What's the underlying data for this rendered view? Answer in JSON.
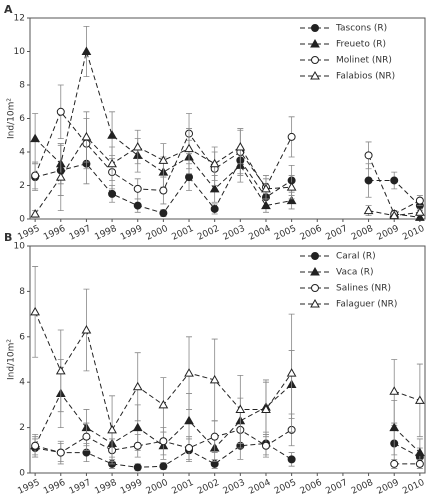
{
  "chart_data": [
    {
      "type": "line",
      "label": "A",
      "ylabel": "Ind/10m²",
      "linestyle": "dashed",
      "legend": "upper right",
      "x": [
        1995,
        1996,
        1997,
        1998,
        1999,
        2000,
        2001,
        2002,
        2003,
        2004,
        2005,
        2006,
        2007,
        2008,
        2009,
        2010
      ],
      "xlim": [
        1994.8,
        2010.2
      ],
      "xticks": [
        1995,
        1996,
        1997,
        1998,
        1999,
        2000,
        2001,
        2002,
        2003,
        2004,
        2005,
        2006,
        2007,
        2008,
        2009,
        2010
      ],
      "ylim": [
        0,
        12
      ],
      "yticks": [
        0,
        2,
        4,
        6,
        8,
        10,
        12
      ],
      "series": [
        {
          "name": "Tascons (R)",
          "color": "#222222",
          "marker": "circle-filled",
          "values": [
            2.5,
            2.9,
            3.3,
            1.5,
            0.8,
            0.35,
            2.5,
            0.6,
            3.5,
            1.3,
            2.3,
            null,
            null,
            2.3,
            2.3,
            0.8
          ],
          "errors": [
            0.8,
            1.5,
            1.2,
            0.5,
            0.4,
            0.2,
            0.8,
            0.3,
            0.8,
            0.5,
            0.9,
            null,
            null,
            1.0,
            0.5,
            0.3
          ]
        },
        {
          "name": "Freueto (R)",
          "color": "#222222",
          "marker": "triangle-filled",
          "values": [
            4.8,
            3.3,
            10,
            5,
            3.8,
            2.8,
            3.7,
            1.8,
            3.2,
            0.8,
            1.1,
            null,
            null,
            null,
            0.3,
            0.1
          ],
          "errors": [
            1.5,
            1.2,
            1.5,
            1.4,
            1.0,
            0.9,
            1.0,
            0.8,
            1.0,
            0.4,
            0.5,
            null,
            null,
            null,
            0.2,
            0.1
          ]
        },
        {
          "name": "Molinet (NR)",
          "color": "#222222",
          "marker": "circle-open",
          "values": [
            2.6,
            6.4,
            4.5,
            2.8,
            1.8,
            1.7,
            5.1,
            3.0,
            4.0,
            1.9,
            4.9,
            null,
            null,
            3.8,
            0.3,
            1.1
          ],
          "errors": [
            0.8,
            1.6,
            1.5,
            1.0,
            0.6,
            0.8,
            1.2,
            1.0,
            1.4,
            0.7,
            1.2,
            null,
            null,
            0.8,
            0.2,
            0.3
          ]
        },
        {
          "name": "Falabios (NR)",
          "color": "#222222",
          "marker": "triangle-open",
          "values": [
            0.3,
            2.5,
            4.9,
            3.3,
            4.3,
            3.5,
            4.2,
            3.3,
            4.3,
            1.8,
            1.9,
            null,
            null,
            0.5,
            0.2,
            0.4
          ],
          "errors": [
            0.2,
            2.0,
            1.5,
            1.0,
            1.0,
            1.0,
            1.2,
            1.0,
            1.0,
            0.6,
            0.7,
            null,
            null,
            0.3,
            0.1,
            0.2
          ]
        }
      ]
    },
    {
      "type": "line",
      "label": "B",
      "ylabel": "Ind/10m²",
      "linestyle": "dashed",
      "legend": "upper right",
      "x": [
        1995,
        1996,
        1997,
        1998,
        1999,
        2000,
        2001,
        2002,
        2003,
        2004,
        2005,
        2006,
        2007,
        2008,
        2009,
        2010
      ],
      "xlim": [
        1994.8,
        2010.2
      ],
      "xticks": [
        1995,
        1996,
        1997,
        1998,
        1999,
        2000,
        2001,
        2002,
        2003,
        2004,
        2005,
        2006,
        2007,
        2008,
        2009,
        2010
      ],
      "ylim": [
        0,
        10
      ],
      "yticks": [
        0,
        2,
        4,
        6,
        8,
        10
      ],
      "series": [
        {
          "name": "Caral (R)",
          "color": "#222222",
          "marker": "circle-filled",
          "values": [
            1.1,
            0.9,
            0.9,
            0.4,
            0.25,
            0.3,
            1.0,
            0.4,
            1.2,
            1.3,
            0.6,
            null,
            null,
            null,
            1.3,
            0.7
          ],
          "errors": [
            0.4,
            0.5,
            0.4,
            0.2,
            0.15,
            0.15,
            0.5,
            0.2,
            0.6,
            0.5,
            0.3,
            null,
            null,
            null,
            0.8,
            0.4
          ]
        },
        {
          "name": "Vaca (R)",
          "color": "#222222",
          "marker": "triangle-filled",
          "values": [
            1.2,
            3.5,
            2.0,
            1.3,
            2.0,
            1.2,
            2.3,
            1.1,
            2.3,
            2.9,
            3.9,
            null,
            null,
            null,
            2.0,
            0.9
          ],
          "errors": [
            0.5,
            1.5,
            0.8,
            0.6,
            1.0,
            0.6,
            1.2,
            0.6,
            1.0,
            1.2,
            1.5,
            null,
            null,
            null,
            1.2,
            0.6
          ]
        },
        {
          "name": "Salines (NR)",
          "color": "#222222",
          "marker": "circle-open",
          "values": [
            1.2,
            0.9,
            1.6,
            1.0,
            1.2,
            1.4,
            1.1,
            1.6,
            1.9,
            1.2,
            1.9,
            null,
            null,
            null,
            0.4,
            0.4
          ],
          "errors": [
            0.4,
            0.4,
            0.6,
            0.5,
            0.5,
            0.6,
            0.5,
            0.7,
            0.8,
            0.5,
            0.7,
            null,
            null,
            null,
            0.2,
            0.2
          ]
        },
        {
          "name": "Falaguer (NR)",
          "color": "#222222",
          "marker": "triangle-open",
          "values": [
            7.1,
            4.5,
            6.3,
            1.9,
            3.8,
            3.0,
            4.4,
            4.1,
            2.8,
            2.8,
            4.4,
            null,
            null,
            null,
            3.6,
            3.2
          ],
          "errors": [
            2.0,
            1.8,
            1.8,
            1.5,
            1.5,
            1.2,
            1.6,
            1.8,
            1.5,
            1.2,
            2.6,
            null,
            null,
            null,
            1.4,
            1.6
          ]
        }
      ]
    }
  ]
}
